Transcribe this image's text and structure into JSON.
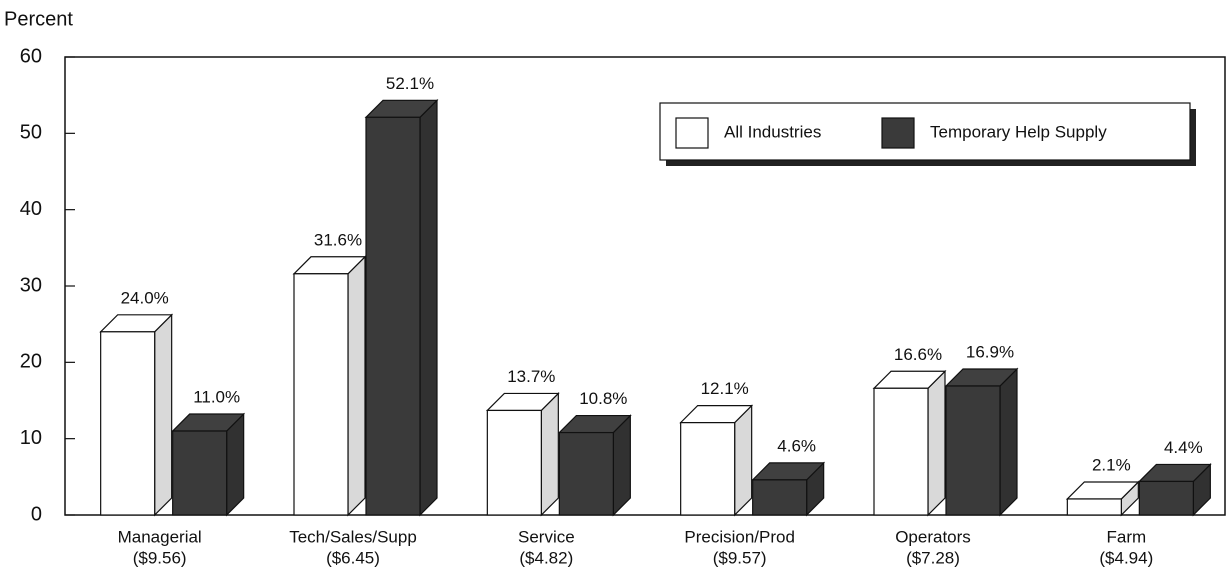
{
  "chart_data": {
    "type": "bar3d",
    "y_label": "Percent",
    "categories": [
      "Managerial",
      "Tech/Sales/Supp",
      "Service",
      "Precision/Prod",
      "Operators",
      "Farm"
    ],
    "category_wages": [
      "($9.56)",
      "($6.45)",
      "($4.82)",
      "($9.57)",
      "($7.28)",
      "($4.94)"
    ],
    "series": [
      {
        "name": "All Industries",
        "color": "#ffffff",
        "values": [
          24.0,
          31.6,
          13.7,
          12.1,
          16.6,
          2.1
        ],
        "value_labels": [
          "24.0%",
          "31.6%",
          "13.7%",
          "12.1%",
          "16.6%",
          "2.1%"
        ]
      },
      {
        "name": "Temporary Help Supply",
        "color": "#3a3a3a",
        "values": [
          11.0,
          52.1,
          10.8,
          4.6,
          16.9,
          4.4
        ],
        "value_labels": [
          "11.0%",
          "52.1%",
          "10.8%",
          "4.6%",
          "16.9%",
          "4.4%"
        ]
      }
    ],
    "ylim": [
      0,
      60
    ],
    "yticks": [
      0,
      10,
      20,
      30,
      40,
      50,
      60
    ],
    "legend": "upper right"
  }
}
